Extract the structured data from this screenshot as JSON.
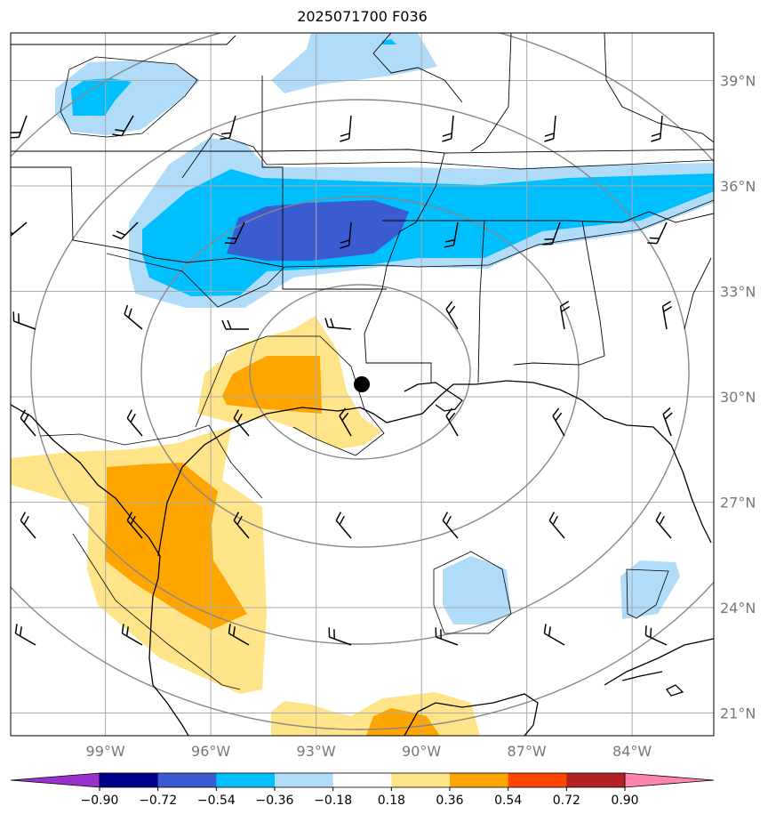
{
  "title": "2025071700 F036",
  "map": {
    "lat_labels": [
      "39°N",
      "36°N",
      "33°N",
      "30°N",
      "27°N",
      "24°N",
      "21°N"
    ],
    "lat_values": [
      39,
      36,
      33,
      30,
      27,
      24,
      21
    ],
    "lon_labels": [
      "99°W",
      "96°W",
      "93°W",
      "90°W",
      "87°W",
      "84°W"
    ],
    "lon_values": [
      -99,
      -96,
      -93,
      -90,
      -87,
      -84
    ],
    "extent": {
      "lon_min": -101.7,
      "lon_max": -81.7,
      "lat_min": 20.4,
      "lat_max": 40.3
    },
    "storm_center": {
      "lon": -91.7,
      "lat": 30.35
    },
    "colors": {
      "graticule": "#aaaaaa",
      "range_rings": "#888888",
      "coastline": "#000000",
      "positive": [
        "#ffe48a",
        "#ffa500",
        "#ff4500",
        "#b22222",
        "#ff85b0"
      ],
      "negative": [
        "#b0dcfa",
        "#00bfff",
        "#3b5bd1",
        "#00008b",
        "#9932cc"
      ]
    }
  },
  "colorbar": {
    "tick_labels": [
      "−0.90",
      "−0.72",
      "−0.54",
      "−0.36",
      "−0.18",
      "0.18",
      "0.36",
      "0.54",
      "0.72",
      "0.90"
    ],
    "bin_colors": [
      "#9932cc",
      "#00008b",
      "#3b5bd1",
      "#00bfff",
      "#b0dcfa",
      "#ffffff",
      "#ffe48a",
      "#ffa500",
      "#ff4500",
      "#b22222",
      "#ff85b0"
    ]
  }
}
